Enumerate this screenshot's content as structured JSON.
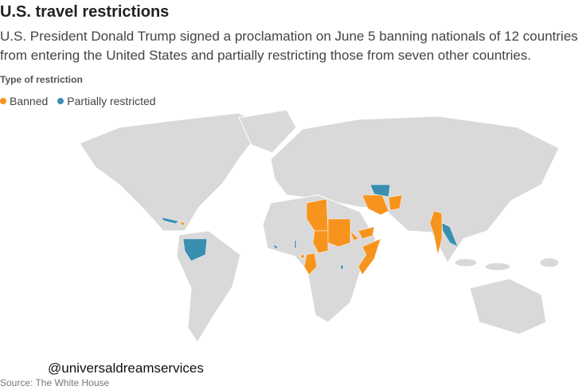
{
  "header": {
    "title": "U.S. travel restrictions",
    "subtitle_lines": [
      "U.S. President Donald Trump signed a proclamation on June 5 banning nationals of 12 countries",
      "from entering the United States and partially restricting those from seven other countries."
    ]
  },
  "legend": {
    "title": "Type of restriction",
    "items": [
      {
        "label": "Banned",
        "color": "#f7941d"
      },
      {
        "label": "Partially restricted",
        "color": "#3a8fb0"
      }
    ]
  },
  "watermark": "@universaldreamservices",
  "source": "Source: The White House"
}
